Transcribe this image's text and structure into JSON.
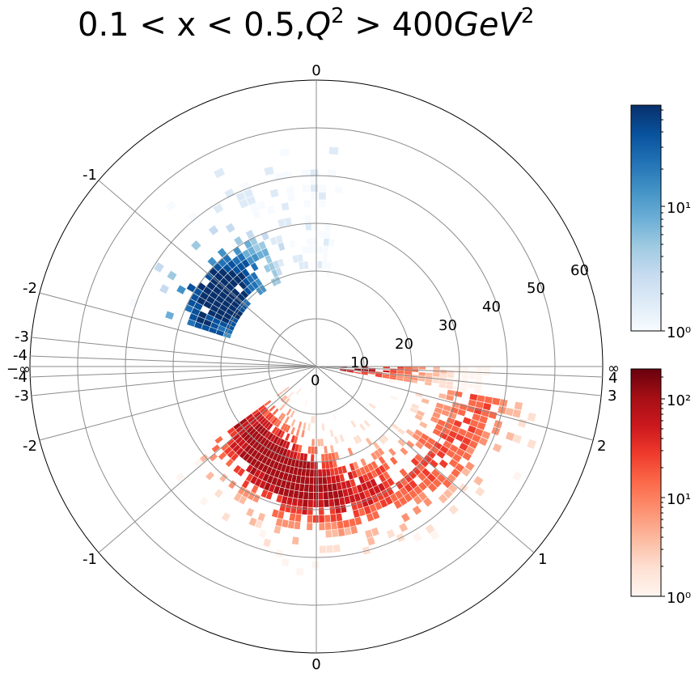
{
  "chart_data": {
    "type": "heatmap",
    "title": {
      "prefix": "0.1 < x < 0.5,",
      "q": "Q",
      "q_exp": "2",
      "mid": " > 400",
      "unit": "GeV",
      "unit_exp": "2"
    },
    "projection": "polar",
    "radial_axis": {
      "range": [
        0,
        60
      ],
      "ticks": [
        10,
        20,
        30,
        40,
        50,
        60
      ],
      "tick_labels": [
        "10",
        "20",
        "30",
        "40",
        "50",
        "60"
      ]
    },
    "angular_axis": {
      "upper_labels": [
        "0",
        "-1",
        "-2",
        "-3",
        "-4",
        "−∞",
        "-4",
        "-3",
        "-2",
        "-1",
        "0"
      ],
      "lower_right_labels": [
        "∞",
        "4",
        "3",
        "2",
        "1"
      ]
    },
    "series": [
      {
        "colormap": "Blues",
        "scale": "log",
        "color_range": [
          1,
          70
        ],
        "colorbar_tick_labels": [
          "10¹",
          "10⁰"
        ],
        "colors": [
          "#f7fbff",
          "#deebf7",
          "#c6dbef",
          "#9ecae1",
          "#6baed6",
          "#4292c6",
          "#2171b5",
          "#08519c",
          "#08306b"
        ],
        "region": {
          "theta_deg": [
            -72,
            8
          ],
          "r": [
            19,
            46
          ]
        }
      },
      {
        "colormap": "Reds",
        "scale": "log",
        "color_range": [
          1,
          200
        ],
        "colorbar_tick_labels": [
          "10²",
          "10¹",
          "10⁰"
        ],
        "colors": [
          "#fff5f0",
          "#fee0d2",
          "#fcbba1",
          "#fc9272",
          "#fb6a4a",
          "#ef3b2c",
          "#cb181d",
          "#a50f15",
          "#67000d"
        ],
        "region": {
          "theta_deg": [
            92,
            230
          ],
          "r": [
            3,
            60
          ]
        }
      }
    ],
    "grid": true
  }
}
